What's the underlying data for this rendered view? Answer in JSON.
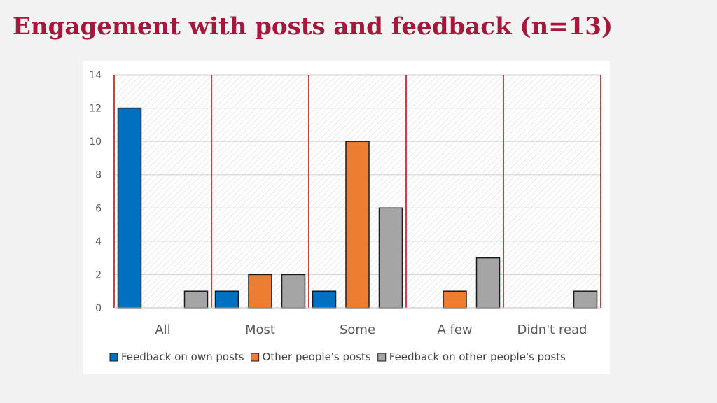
{
  "slide": {
    "title": "Engagement with posts and feedback (n=13)"
  },
  "colors": {
    "title": "#a6173c",
    "divider": "#c00000"
  },
  "chart_data": {
    "type": "bar",
    "title": "",
    "xlabel": "",
    "ylabel": "",
    "categories": [
      "All",
      "Most",
      "Some",
      "A few",
      "Didn't read"
    ],
    "ylim": [
      0,
      14
    ],
    "yticks": [
      0,
      2,
      4,
      6,
      8,
      10,
      12,
      14
    ],
    "grid": true,
    "legend_position": "bottom",
    "series": [
      {
        "name": "Feedback on own posts",
        "color": "#0070c0",
        "values": [
          12,
          1,
          1,
          0,
          0
        ]
      },
      {
        "name": "Other people's posts",
        "color": "#ed7d31",
        "values": [
          0,
          2,
          10,
          1,
          0
        ]
      },
      {
        "name": "Feedback on other people's posts",
        "color": "#a5a5a5",
        "values": [
          1,
          2,
          6,
          3,
          1
        ]
      }
    ]
  }
}
